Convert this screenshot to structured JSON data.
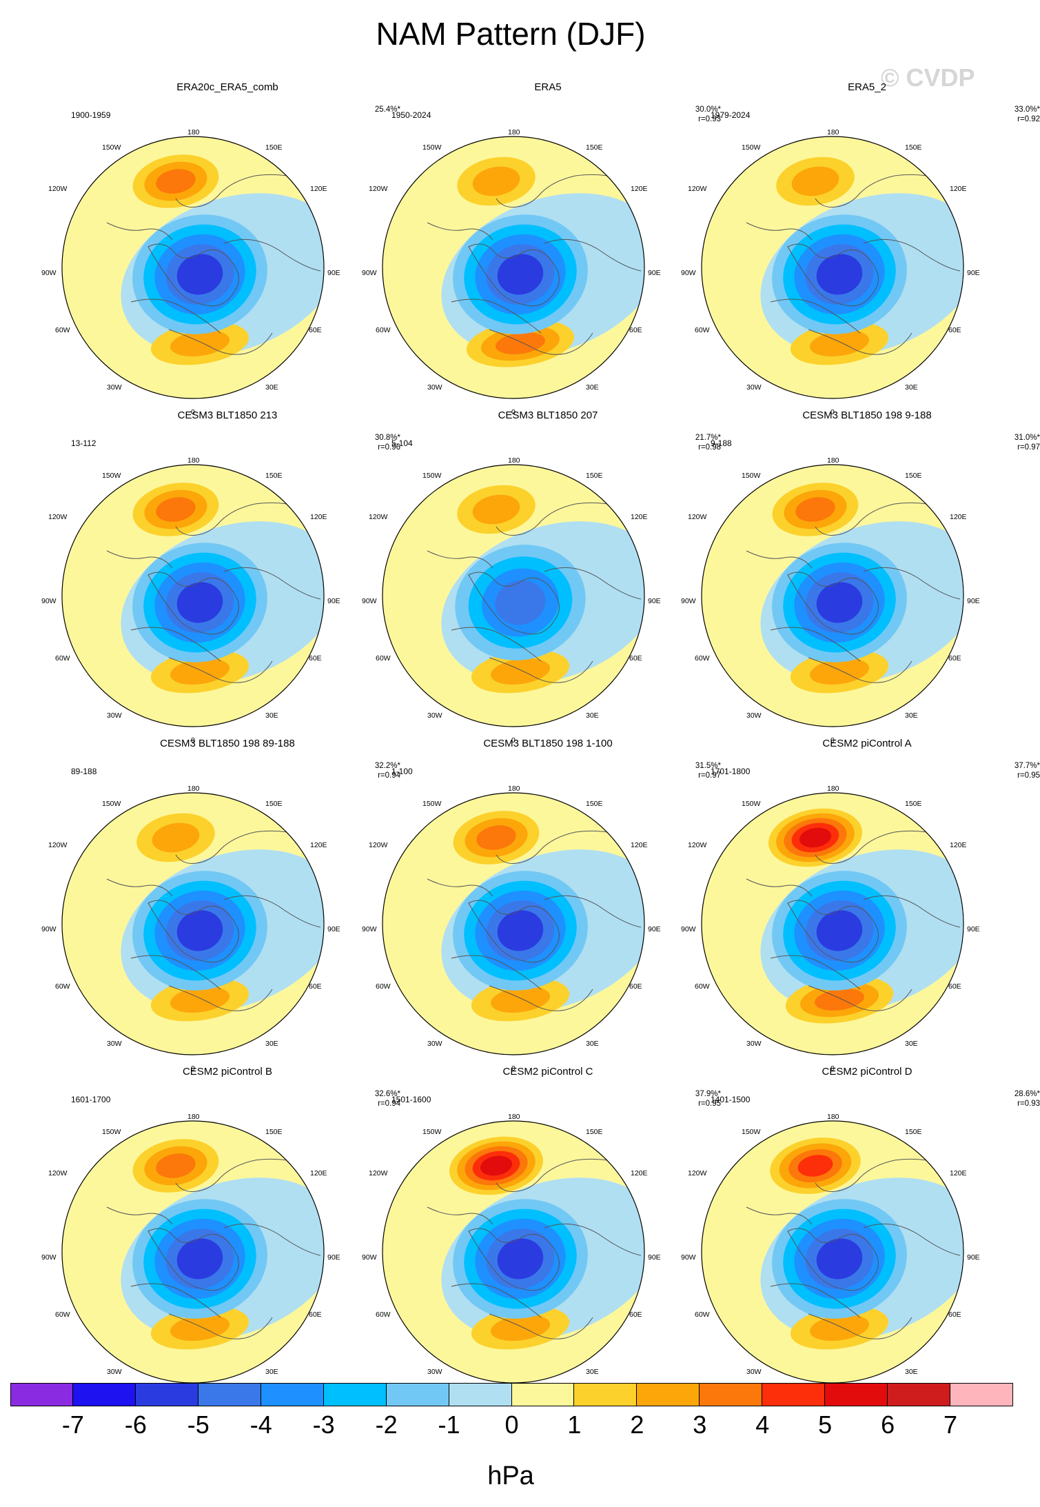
{
  "figure": {
    "title": "NAM Pattern (DJF)",
    "watermark": "© CVDP",
    "units": "hPa",
    "colorbar": {
      "ticks": [
        "-7",
        "-6",
        "-5",
        "-4",
        "-3",
        "-2",
        "-1",
        "0",
        "1",
        "2",
        "3",
        "4",
        "5",
        "6",
        "7"
      ],
      "colors": [
        "#8a2be2",
        "#1e12f0",
        "#2a3be0",
        "#3a78ea",
        "#1e90ff",
        "#00bfff",
        "#72c8f4",
        "#b0dff2",
        "#fdf79c",
        "#fcd12c",
        "#fca60a",
        "#fc780a",
        "#fc2f0a",
        "#e30c0c",
        "#cf1d1d",
        "#feb6bc"
      ]
    },
    "lon_labels": [
      "180",
      "150E",
      "120E",
      "90E",
      "60E",
      "30E",
      "0",
      "30W",
      "60W",
      "90W",
      "120W",
      "150W"
    ]
  },
  "chart_data": [
    {
      "type": "heatmap",
      "title": "ERA20c_ERA5_comb",
      "period": "1900-1959",
      "variance": "25.4%*",
      "corr": "",
      "centers": {
        "pacific_high": 2.8,
        "polar_low": -4.6,
        "atlantic_high": 2.1
      }
    },
    {
      "type": "heatmap",
      "title": "ERA5",
      "period": "1950-2024",
      "variance": "30.0%*",
      "corr": "r=0.93",
      "centers": {
        "pacific_high": 1.8,
        "polar_low": -4.8,
        "atlantic_high": 2.6
      }
    },
    {
      "type": "heatmap",
      "title": "ERA5_2",
      "period": "1979-2024",
      "variance": "33.0%*",
      "corr": "r=0.92",
      "centers": {
        "pacific_high": 1.6,
        "polar_low": -5.3,
        "atlantic_high": 2.4
      }
    },
    {
      "type": "heatmap",
      "title": "CESM3 BLT1850 213",
      "period": "13-112",
      "variance": "30.8%*",
      "corr": "r=0.96",
      "centers": {
        "pacific_high": 3.2,
        "polar_low": -4.7,
        "atlantic_high": 2.0
      }
    },
    {
      "type": "heatmap",
      "title": "CESM3 BLT1850 207",
      "period": "5-104",
      "variance": "21.7%*",
      "corr": "r=0.98",
      "centers": {
        "pacific_high": 2.1,
        "polar_low": -4.4,
        "atlantic_high": 1.9
      }
    },
    {
      "type": "heatmap",
      "title": "CESM3 BLT1850 198 9-188",
      "period": "9-188",
      "variance": "31.0%*",
      "corr": "r=0.97",
      "centers": {
        "pacific_high": 2.9,
        "polar_low": -5.2,
        "atlantic_high": 2.2
      }
    },
    {
      "type": "heatmap",
      "title": "CESM3 BLT1850 198 89-188",
      "period": "89-188",
      "variance": "32.2%*",
      "corr": "r=0.94",
      "centers": {
        "pacific_high": 1.8,
        "polar_low": -5.3,
        "atlantic_high": 2.4
      }
    },
    {
      "type": "heatmap",
      "title": "CESM3 BLT1850 198 1-100",
      "period": "1-100",
      "variance": "31.5%*",
      "corr": "r=0.97",
      "centers": {
        "pacific_high": 3.2,
        "polar_low": -5.4,
        "atlantic_high": 1.9
      }
    },
    {
      "type": "heatmap",
      "title": "CESM2 piControl A",
      "period": "1701-1800",
      "variance": "37.7%*",
      "corr": "r=0.95",
      "centers": {
        "pacific_high": 5.3,
        "polar_low": -5.4,
        "atlantic_high": 2.6
      }
    },
    {
      "type": "heatmap",
      "title": "CESM2 piControl B",
      "period": "1601-1700",
      "variance": "32.6%*",
      "corr": "r=0.94",
      "centers": {
        "pacific_high": 2.6,
        "polar_low": -5.3,
        "atlantic_high": 2.4
      }
    },
    {
      "type": "heatmap",
      "title": "CESM2 piControl C",
      "period": "1501-1600",
      "variance": "37.9%*",
      "corr": "r=0.95",
      "centers": {
        "pacific_high": 5.4,
        "polar_low": -5.4,
        "atlantic_high": 2.4
      }
    },
    {
      "type": "heatmap",
      "title": "CESM2 piControl D",
      "period": "1401-1500",
      "variance": "28.6%*",
      "corr": "r=0.93",
      "centers": {
        "pacific_high": 4.3,
        "polar_low": -4.9,
        "atlantic_high": 2.1
      }
    }
  ]
}
